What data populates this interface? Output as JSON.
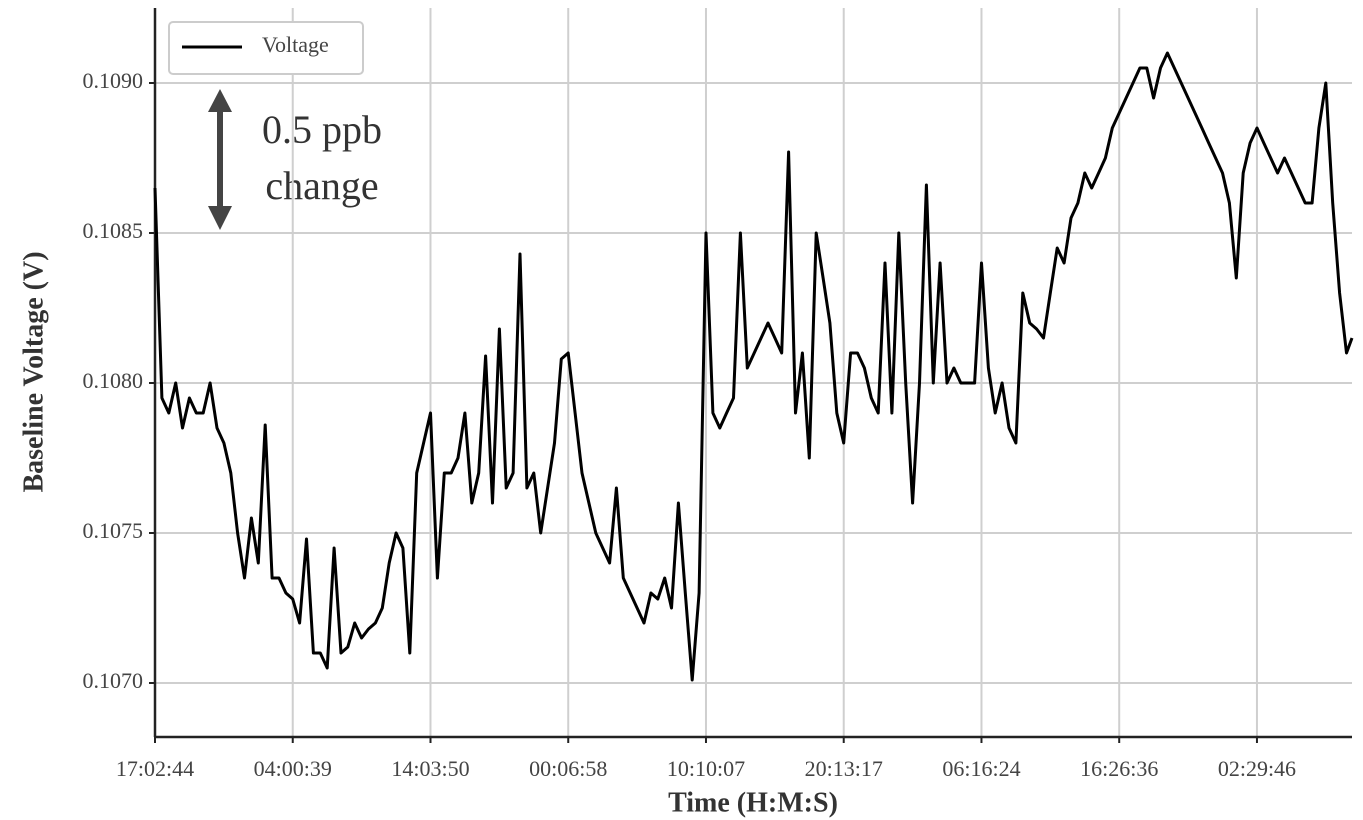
{
  "chart_data": {
    "type": "line",
    "x_label": "Time (H:M:S)",
    "y_label": "Baseline Voltage (V)",
    "annotation": [
      "0.5 ppb",
      "change"
    ],
    "legend_position": "upper left",
    "grid": true,
    "x": [
      0,
      5,
      10,
      15,
      20,
      25,
      30,
      35,
      40,
      45,
      50,
      55,
      60,
      65,
      70,
      75,
      80,
      85,
      90,
      95,
      100,
      105,
      110,
      115,
      120,
      125,
      130,
      135,
      140,
      145,
      150,
      155,
      160,
      165,
      170,
      175,
      180,
      185,
      190,
      195,
      200,
      205,
      210,
      215,
      220,
      225,
      230,
      235,
      240,
      245,
      250,
      255,
      260,
      265,
      270,
      275,
      280,
      285,
      290,
      295,
      300,
      305,
      310,
      315,
      320,
      325,
      330,
      335,
      340,
      345,
      350,
      355,
      360,
      365,
      370,
      375,
      380,
      385,
      390,
      395,
      400,
      405,
      410,
      415,
      420,
      425,
      430,
      435,
      440,
      445,
      450,
      455,
      460,
      465,
      470,
      475,
      480,
      485,
      490,
      495,
      500,
      505,
      510,
      515,
      520,
      525,
      530,
      535,
      540,
      545,
      550,
      555,
      560,
      565,
      570,
      575,
      580,
      585,
      590,
      595,
      600,
      605,
      610,
      615,
      620,
      625,
      630,
      635,
      640,
      645,
      650,
      655,
      660,
      665,
      670,
      675,
      680,
      685,
      690,
      695,
      700,
      705,
      710,
      715,
      720,
      725,
      730,
      735,
      740,
      745,
      750,
      755,
      760,
      765,
      770,
      775,
      780,
      785,
      790,
      795,
      800,
      805,
      810,
      815,
      820,
      825,
      830,
      835,
      840,
      845,
      850,
      855,
      860,
      865,
      869
    ],
    "series": [
      {
        "name": "Voltage",
        "color": "#000000",
        "values": [
          0.10865,
          0.10795,
          0.1079,
          0.108,
          0.10785,
          0.10795,
          0.1079,
          0.1079,
          0.108,
          0.10785,
          0.1078,
          0.1077,
          0.1075,
          0.10735,
          0.10755,
          0.1074,
          0.10786,
          0.10735,
          0.10735,
          0.1073,
          0.10728,
          0.1072,
          0.10748,
          0.1071,
          0.1071,
          0.10705,
          0.10745,
          0.1071,
          0.10712,
          0.1072,
          0.10715,
          0.10718,
          0.1072,
          0.10725,
          0.1074,
          0.1075,
          0.10745,
          0.1071,
          0.1077,
          0.1078,
          0.1079,
          0.10735,
          0.1077,
          0.1077,
          0.10775,
          0.1079,
          0.1076,
          0.1077,
          0.10809,
          0.1076,
          0.10818,
          0.10765,
          0.1077,
          0.10843,
          0.10765,
          0.1077,
          0.1075,
          0.10765,
          0.1078,
          0.10808,
          0.1081,
          0.1079,
          0.1077,
          0.1076,
          0.1075,
          0.10745,
          0.1074,
          0.10765,
          0.10735,
          0.1073,
          0.10725,
          0.1072,
          0.1073,
          0.10728,
          0.10735,
          0.10725,
          0.1076,
          0.1073,
          0.10701,
          0.1073,
          0.1085,
          0.1079,
          0.10785,
          0.1079,
          0.10795,
          0.1085,
          0.10805,
          0.1081,
          0.10815,
          0.1082,
          0.10815,
          0.1081,
          0.10877,
          0.1079,
          0.1081,
          0.10775,
          0.1085,
          0.10835,
          0.1082,
          0.1079,
          0.1078,
          0.1081,
          0.1081,
          0.10805,
          0.10795,
          0.1079,
          0.1084,
          0.1079,
          0.1085,
          0.108,
          0.1076,
          0.108,
          0.10866,
          0.108,
          0.1084,
          0.108,
          0.10805,
          0.108,
          0.108,
          0.108,
          0.1084,
          0.10805,
          0.1079,
          0.108,
          0.10785,
          0.1078,
          0.1083,
          0.1082,
          0.10818,
          0.10815,
          0.1083,
          0.10845,
          0.1084,
          0.10855,
          0.1086,
          0.1087,
          0.10865,
          0.1087,
          0.10875,
          0.10885,
          0.1089,
          0.10895,
          0.109,
          0.10905,
          0.10905,
          0.10895,
          0.10905,
          0.1091,
          0.10905,
          0.109,
          0.10895,
          0.1089,
          0.10885,
          0.1088,
          0.10875,
          0.1087,
          0.1086,
          0.10835,
          0.1087,
          0.1088,
          0.10885,
          0.1088,
          0.10875,
          0.1087,
          0.10875,
          0.1087,
          0.10865,
          0.1086,
          0.1086,
          0.10885,
          0.109,
          0.1086,
          0.1083,
          0.1081,
          0.10815
        ]
      }
    ],
    "xlim": [
      0,
      869
    ],
    "xticks": [
      {
        "value": 0,
        "label": "17:02:44"
      },
      {
        "value": 100,
        "label": "04:00:39"
      },
      {
        "value": 200,
        "label": "14:03:50"
      },
      {
        "value": 300,
        "label": "00:06:58"
      },
      {
        "value": 400,
        "label": "10:10:07"
      },
      {
        "value": 500,
        "label": "20:13:17"
      },
      {
        "value": 600,
        "label": "06:16:24"
      },
      {
        "value": 700,
        "label": "16:26:36"
      },
      {
        "value": 800,
        "label": "02:29:46"
      }
    ],
    "ylim": [
      0.10682,
      0.10925
    ],
    "yticks": [
      {
        "value": 0.107,
        "label": "0.1070"
      },
      0.1075,
      {
        "value": 0.108,
        "label": "0.1080"
      },
      0.1085,
      {
        "value": 0.109,
        "label": "0.1090"
      }
    ]
  }
}
